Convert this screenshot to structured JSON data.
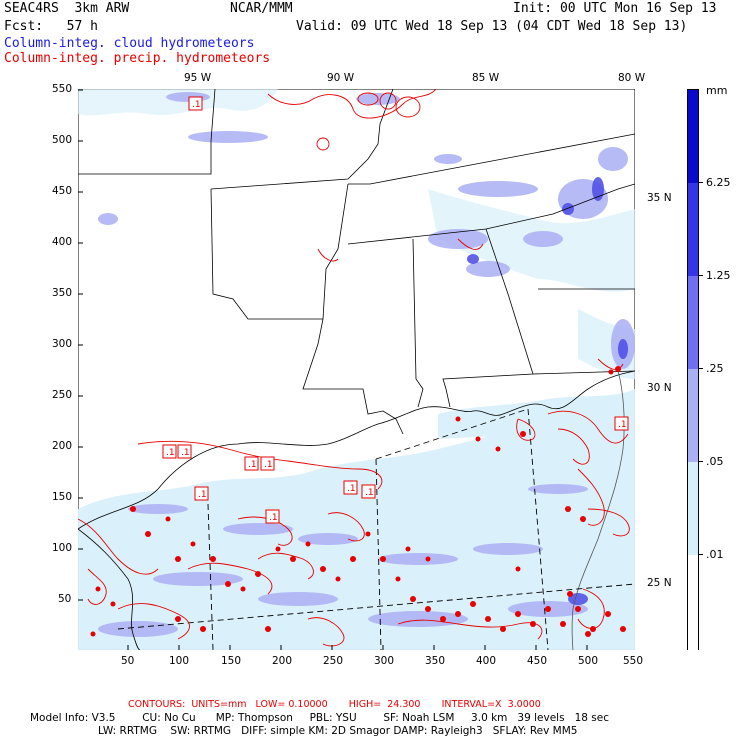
{
  "header": {
    "model": "SEAC4RS  3km ARW",
    "org": "NCAR/MMM",
    "init": "Init: 00 UTC Mon 16 Sep 13",
    "fcst": "Fcst:   57 h",
    "valid": "Valid: 09 UTC Wed 18 Sep 13 (04 CDT Wed 18 Sep 13)",
    "field1": "Column-integ. cloud hydrometeors",
    "field2": "Column-integ. precip. hydrometeors"
  },
  "axes": {
    "top_lon_labels": [
      "95 W",
      "90 W",
      "85 W",
      "80 W"
    ],
    "right_lat_labels": [
      "35 N",
      "30 N",
      "25 N"
    ],
    "left_ticks": [
      "550",
      "500",
      "450",
      "400",
      "350",
      "300",
      "250",
      "200",
      "150",
      "100",
      "50"
    ],
    "bottom_ticks": [
      "50",
      "100",
      "150",
      "200",
      "250",
      "300",
      "350",
      "400",
      "450",
      "500",
      "550"
    ]
  },
  "colorbar": {
    "unit": "mm",
    "labels": [
      "6.25",
      "1.25",
      ".25",
      ".05",
      ".01"
    ],
    "colors": [
      "#0a0acc",
      "#3535e8",
      "#6f6ff2",
      "#aab0f5",
      "#d5f0fb",
      "#ffffff"
    ]
  },
  "contour_labels": [
    ".1",
    ".1",
    ".1",
    ".1",
    ".1",
    ".1",
    ".1",
    ".1",
    ".1",
    ".1"
  ],
  "footer": {
    "contours": "CONTOURS:  UNITS=mm   LOW= 0.10000       HIGH=  24.300       INTERVAL=X  3.0000",
    "line1": "Model Info: V3.5        CU: No Cu      MP: Thompson     PBL: YSU        SF: Noah LSM     3.0 km   39 levels   18 sec",
    "line2": "LW: RRTMG    SW: RRTMG   DIFF: simple KM: 2D Smagor DAMP: Rayleigh3   SFLAY: Rev MM5"
  }
}
